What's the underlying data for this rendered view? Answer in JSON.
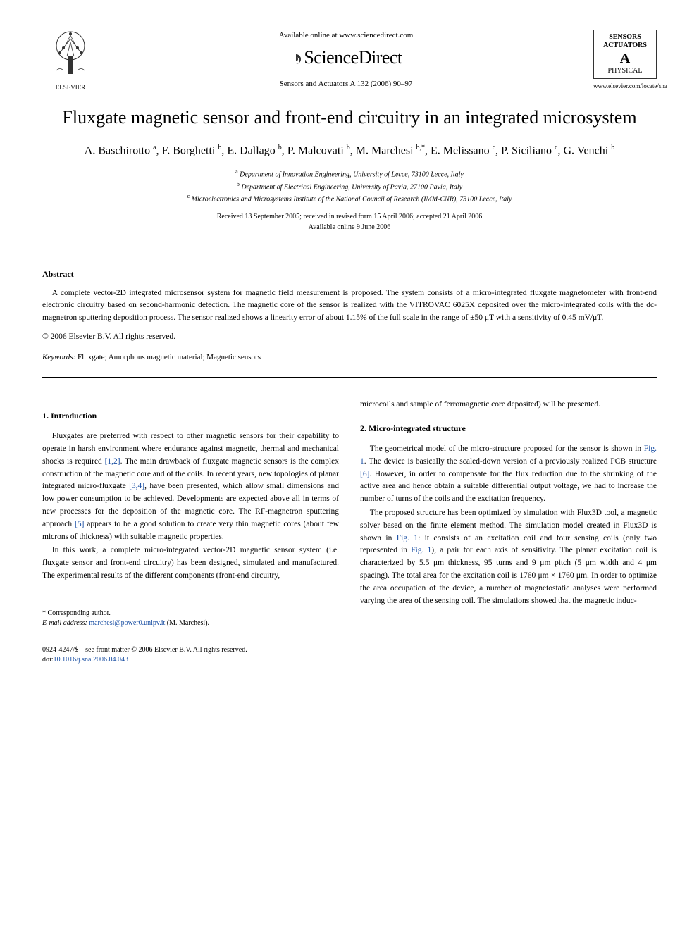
{
  "header": {
    "elsevier_label": "ELSEVIER",
    "available_online": "Available online at www.sciencedirect.com",
    "sciencedirect": "ScienceDirect",
    "journal_ref": "Sensors and Actuators A 132 (2006) 90–97",
    "journal_logo": {
      "line1": "SENSORS",
      "line2": "ACTUATORS",
      "line3": "A",
      "line4": "PHYSICAL"
    },
    "journal_url": "www.elsevier.com/locate/sna"
  },
  "title": "Fluxgate magnetic sensor and front-end circuitry in an integrated microsystem",
  "authors_html": "A. Baschirotto <sup>a</sup>, F. Borghetti <sup>b</sup>, E. Dallago <sup>b</sup>, P. Malcovati <sup>b</sup>, M. Marchesi <sup>b,*</sup>, E. Melissano <sup>c</sup>, P. Siciliano <sup>c</sup>, G. Venchi <sup>b</sup>",
  "affiliations": [
    "Department of Innovation Engineering, University of Lecce, 73100 Lecce, Italy",
    "Department of Electrical Engineering, University of Pavia, 27100 Pavia, Italy",
    "Microelectronics and Microsystems Institute of the National Council of Research (IMM-CNR), 73100 Lecce, Italy"
  ],
  "aff_markers": [
    "a",
    "b",
    "c"
  ],
  "dates": {
    "received": "Received 13 September 2005; received in revised form 15 April 2006; accepted 21 April 2006",
    "online": "Available online 9 June 2006"
  },
  "abstract": {
    "heading": "Abstract",
    "text": "A complete vector-2D integrated microsensor system for magnetic field measurement is proposed. The system consists of a micro-integrated fluxgate magnetometer with front-end electronic circuitry based on second-harmonic detection. The magnetic core of the sensor is realized with the VITROVAC 6025X deposited over the micro-integrated coils with the dc-magnetron sputtering deposition process. The sensor realized shows a linearity error of about 1.15% of the full scale in the range of ±50 μT with a sensitivity of 0.45 mV/μT.",
    "copyright": "© 2006 Elsevier B.V. All rights reserved."
  },
  "keywords": {
    "label": "Keywords:",
    "text": "Fluxgate; Amorphous magnetic material; Magnetic sensors"
  },
  "sections": {
    "intro": {
      "heading": "1. Introduction",
      "p1_pre": "Fluxgates are preferred with respect to other magnetic sensors for their capability to operate in harsh environment where endurance against magnetic, thermal and mechanical shocks is required ",
      "ref1": "[1,2]",
      "p1_mid1": ". The main drawback of fluxgate magnetic sensors is the complex construction of the magnetic core and of the coils. In recent years, new topologies of planar integrated micro-fluxgate ",
      "ref2": "[3,4]",
      "p1_mid2": ", have been presented, which allow small dimensions and low power consumption to be achieved. Developments are expected above all in terms of new processes for the deposition of the magnetic core. The RF-magnetron sputtering approach ",
      "ref3": "[5]",
      "p1_post": " appears to be a good solution to create very thin magnetic cores (about few microns of thickness) with suitable magnetic properties.",
      "p2": "In this work, a complete micro-integrated vector-2D magnetic sensor system (i.e. fluxgate sensor and front-end circuitry) has been designed, simulated and manufactured. The experimental results of the different components (front-end circuitry,",
      "p2_cont": "microcoils and sample of ferromagnetic core deposited) will be presented."
    },
    "micro": {
      "heading": "2. Micro-integrated structure",
      "p1_pre": "The geometrical model of the micro-structure proposed for the sensor is shown in ",
      "fig1a": "Fig. 1",
      "p1_mid": ". The device is basically the scaled-down version of a previously realized PCB structure ",
      "ref6": "[6]",
      "p1_post": ". However, in order to compensate for the flux reduction due to the shrinking of the active area and hence obtain a suitable differential output voltage, we had to increase the number of turns of the coils and the excitation frequency.",
      "p2_pre": "The proposed structure has been optimized by simulation with Flux3D tool, a magnetic solver based on the finite element method. The simulation model created in Flux3D is shown in ",
      "fig1b": "Fig. 1",
      "p2_mid": ": it consists of an excitation coil and four sensing coils (only two represented in ",
      "fig1c": "Fig. 1",
      "p2_post": "), a pair for each axis of sensitivity. The planar excitation coil is characterized by 5.5 μm thickness, 95 turns and 9 μm pitch (5 μm width and 4 μm spacing). The total area for the excitation coil is 1760 μm × 1760 μm. In order to optimize the area occupation of the device, a number of magnetostatic analyses were performed varying the area of the sensing coil. The simulations showed that the magnetic induc-"
    }
  },
  "footnote": {
    "corr": "* Corresponding author.",
    "email_label": "E-mail address:",
    "email": "marchesi@power0.unipv.it",
    "email_who": "(M. Marchesi)."
  },
  "bottom": {
    "issn": "0924-4247/$ – see front matter © 2006 Elsevier B.V. All rights reserved.",
    "doi_label": "doi:",
    "doi": "10.1016/j.sna.2006.04.043"
  },
  "colors": {
    "link": "#1a4fa3",
    "text": "#000000",
    "bg": "#ffffff"
  }
}
